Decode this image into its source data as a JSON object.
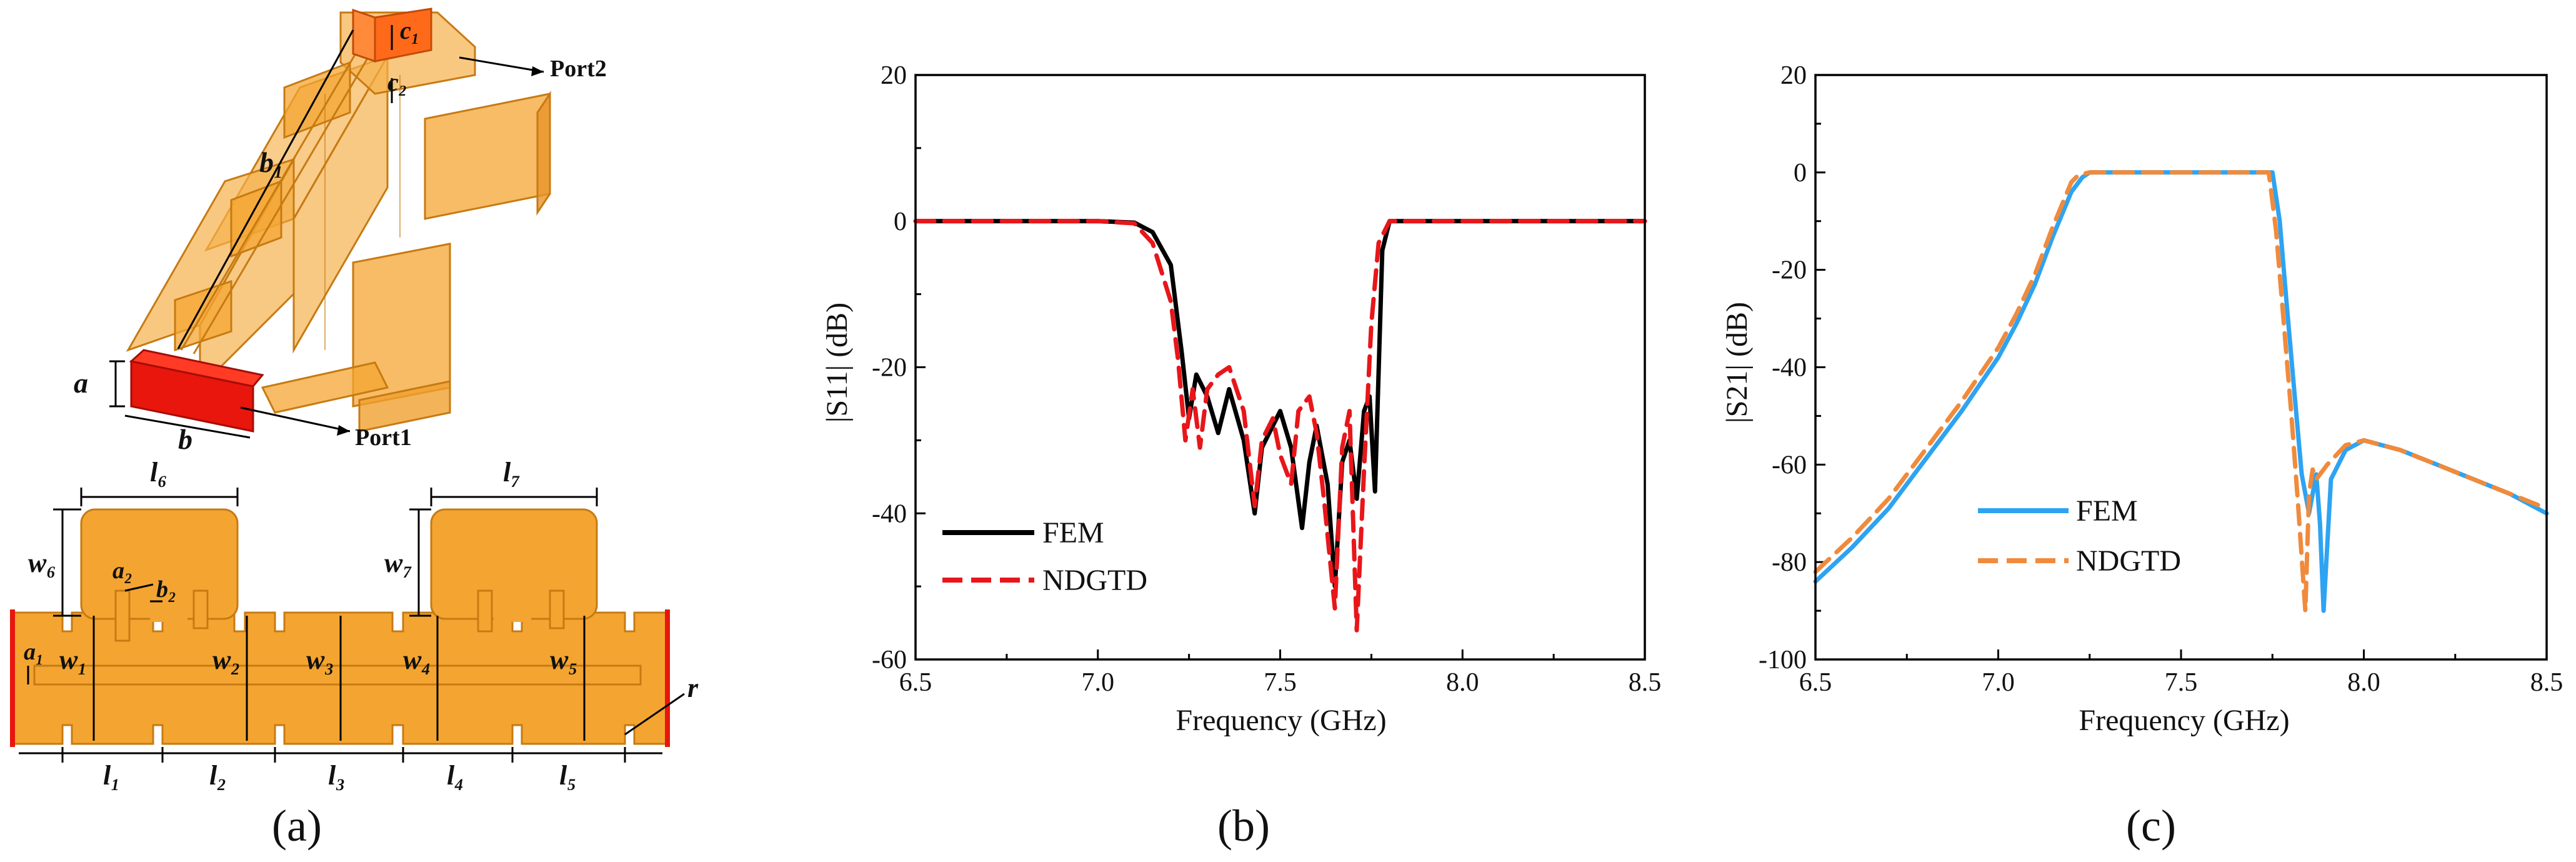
{
  "panel_a": {
    "caption": "(a)",
    "top_labels": {
      "port2": "Port2",
      "port1": "Port1",
      "c1": "c₁",
      "c2": "c₂",
      "b1": "b₁",
      "a": "a",
      "b": "b"
    },
    "bottom_labels": {
      "l6": "l₆",
      "l7": "l₇",
      "w6": "w₆",
      "w7": "w₇",
      "a2": "a₂",
      "b2": "b₂",
      "a1": "a₁",
      "w1": "w₁",
      "w2": "w₂",
      "w3": "w₃",
      "w4": "w₄",
      "w5": "w₅",
      "r": "r",
      "l1": "l₁",
      "l2": "l₂",
      "l3": "l₃",
      "l4": "l₄",
      "l5": "l₅"
    },
    "colors": {
      "body": "#f4a531",
      "body_edge": "#c77a12",
      "port_red": "#e8160c",
      "port_orange": "#ff6a1a"
    }
  },
  "chart_data": [
    {
      "type": "line",
      "caption": "(b)",
      "xlabel": "Frequency (GHz)",
      "ylabel": "|S11| (dB)",
      "xlim": [
        6.5,
        8.5
      ],
      "ylim": [
        -60,
        20
      ],
      "xticks": [
        6.5,
        7.0,
        7.5,
        8.0,
        8.5
      ],
      "xtick_labels": [
        "6.5",
        "7.0",
        "7.5",
        "8.0",
        "8.5"
      ],
      "yticks": [
        -60,
        -40,
        -20,
        0,
        20
      ],
      "ytick_labels": [
        "-60",
        "-40",
        "-20",
        "0",
        "20"
      ],
      "legend": "lower-left",
      "series": [
        {
          "name": "FEM",
          "color": "#000000",
          "style": "solid",
          "x": [
            6.5,
            7.0,
            7.1,
            7.15,
            7.2,
            7.23,
            7.25,
            7.27,
            7.3,
            7.33,
            7.36,
            7.4,
            7.43,
            7.45,
            7.5,
            7.53,
            7.56,
            7.58,
            7.6,
            7.63,
            7.65,
            7.67,
            7.69,
            7.71,
            7.73,
            7.745,
            7.76,
            7.78,
            7.8,
            8.0,
            8.5
          ],
          "y": [
            0,
            0,
            -0.2,
            -1.5,
            -6,
            -18,
            -27,
            -21,
            -24,
            -29,
            -23,
            -30,
            -40,
            -31,
            -26,
            -31,
            -42,
            -33,
            -28,
            -36,
            -50,
            -33,
            -30,
            -38,
            -26,
            -24,
            -37,
            -4,
            0,
            0,
            0
          ]
        },
        {
          "name": "NDGTD",
          "color": "#e8161a",
          "style": "dashed",
          "x": [
            6.5,
            7.0,
            7.1,
            7.15,
            7.2,
            7.22,
            7.24,
            7.26,
            7.28,
            7.3,
            7.33,
            7.36,
            7.4,
            7.43,
            7.45,
            7.48,
            7.5,
            7.53,
            7.55,
            7.58,
            7.6,
            7.62,
            7.65,
            7.67,
            7.69,
            7.71,
            7.73,
            7.75,
            7.77,
            7.8,
            8.0,
            8.5
          ],
          "y": [
            0,
            0,
            -0.3,
            -3,
            -11,
            -19,
            -30,
            -23,
            -31,
            -23,
            -21,
            -20,
            -26,
            -39,
            -30,
            -27,
            -32,
            -36,
            -26,
            -24,
            -29,
            -38,
            -53,
            -31,
            -26,
            -56,
            -34,
            -14,
            -3,
            0,
            0,
            0
          ]
        }
      ]
    },
    {
      "type": "line",
      "caption": "(c)",
      "xlabel": "Frequency (GHz)",
      "ylabel": "|S21| (dB)",
      "xlim": [
        6.5,
        8.5
      ],
      "ylim": [
        -100,
        20
      ],
      "xticks": [
        6.5,
        7.0,
        7.5,
        8.0,
        8.5
      ],
      "xtick_labels": [
        "6.5",
        "7.0",
        "7.5",
        "8.0",
        "8.5"
      ],
      "yticks": [
        -100,
        -80,
        -60,
        -40,
        -20,
        0,
        20
      ],
      "ytick_labels": [
        "-100",
        "-80",
        "-60",
        "-40",
        "-20",
        "0",
        "20"
      ],
      "legend": "lower-left",
      "series": [
        {
          "name": "FEM",
          "color": "#2ea3f2",
          "style": "solid",
          "x": [
            6.5,
            6.6,
            6.7,
            6.8,
            6.9,
            7.0,
            7.05,
            7.1,
            7.15,
            7.2,
            7.23,
            7.25,
            7.3,
            7.5,
            7.75,
            7.77,
            7.79,
            7.81,
            7.83,
            7.85,
            7.87,
            7.88,
            7.89,
            7.91,
            7.95,
            8.0,
            8.1,
            8.2,
            8.3,
            8.4,
            8.5
          ],
          "y": [
            -84,
            -77,
            -69,
            -59,
            -49,
            -38,
            -31,
            -23,
            -13,
            -4,
            -1,
            0,
            0,
            0,
            0,
            -10,
            -28,
            -45,
            -62,
            -70,
            -62,
            -72,
            -90,
            -63,
            -57,
            -55,
            -57,
            -60,
            -63,
            -66,
            -70
          ]
        },
        {
          "name": "NDGTD",
          "color": "#f08a3c",
          "style": "dashed",
          "x": [
            6.5,
            6.6,
            6.7,
            6.8,
            6.9,
            7.0,
            7.05,
            7.1,
            7.15,
            7.2,
            7.22,
            7.25,
            7.3,
            7.5,
            7.74,
            7.76,
            7.78,
            7.8,
            7.82,
            7.84,
            7.85,
            7.86,
            7.87,
            7.9,
            7.95,
            8.0,
            8.1,
            8.2,
            8.3,
            8.4,
            8.5
          ],
          "y": [
            -82,
            -75,
            -67,
            -57,
            -47,
            -36,
            -29,
            -21,
            -11,
            -2,
            -0.5,
            0,
            0,
            0,
            0,
            -12,
            -30,
            -48,
            -68,
            -90,
            -66,
            -61,
            -63,
            -60,
            -56,
            -55,
            -57,
            -60,
            -63,
            -66,
            -69
          ]
        }
      ]
    }
  ]
}
